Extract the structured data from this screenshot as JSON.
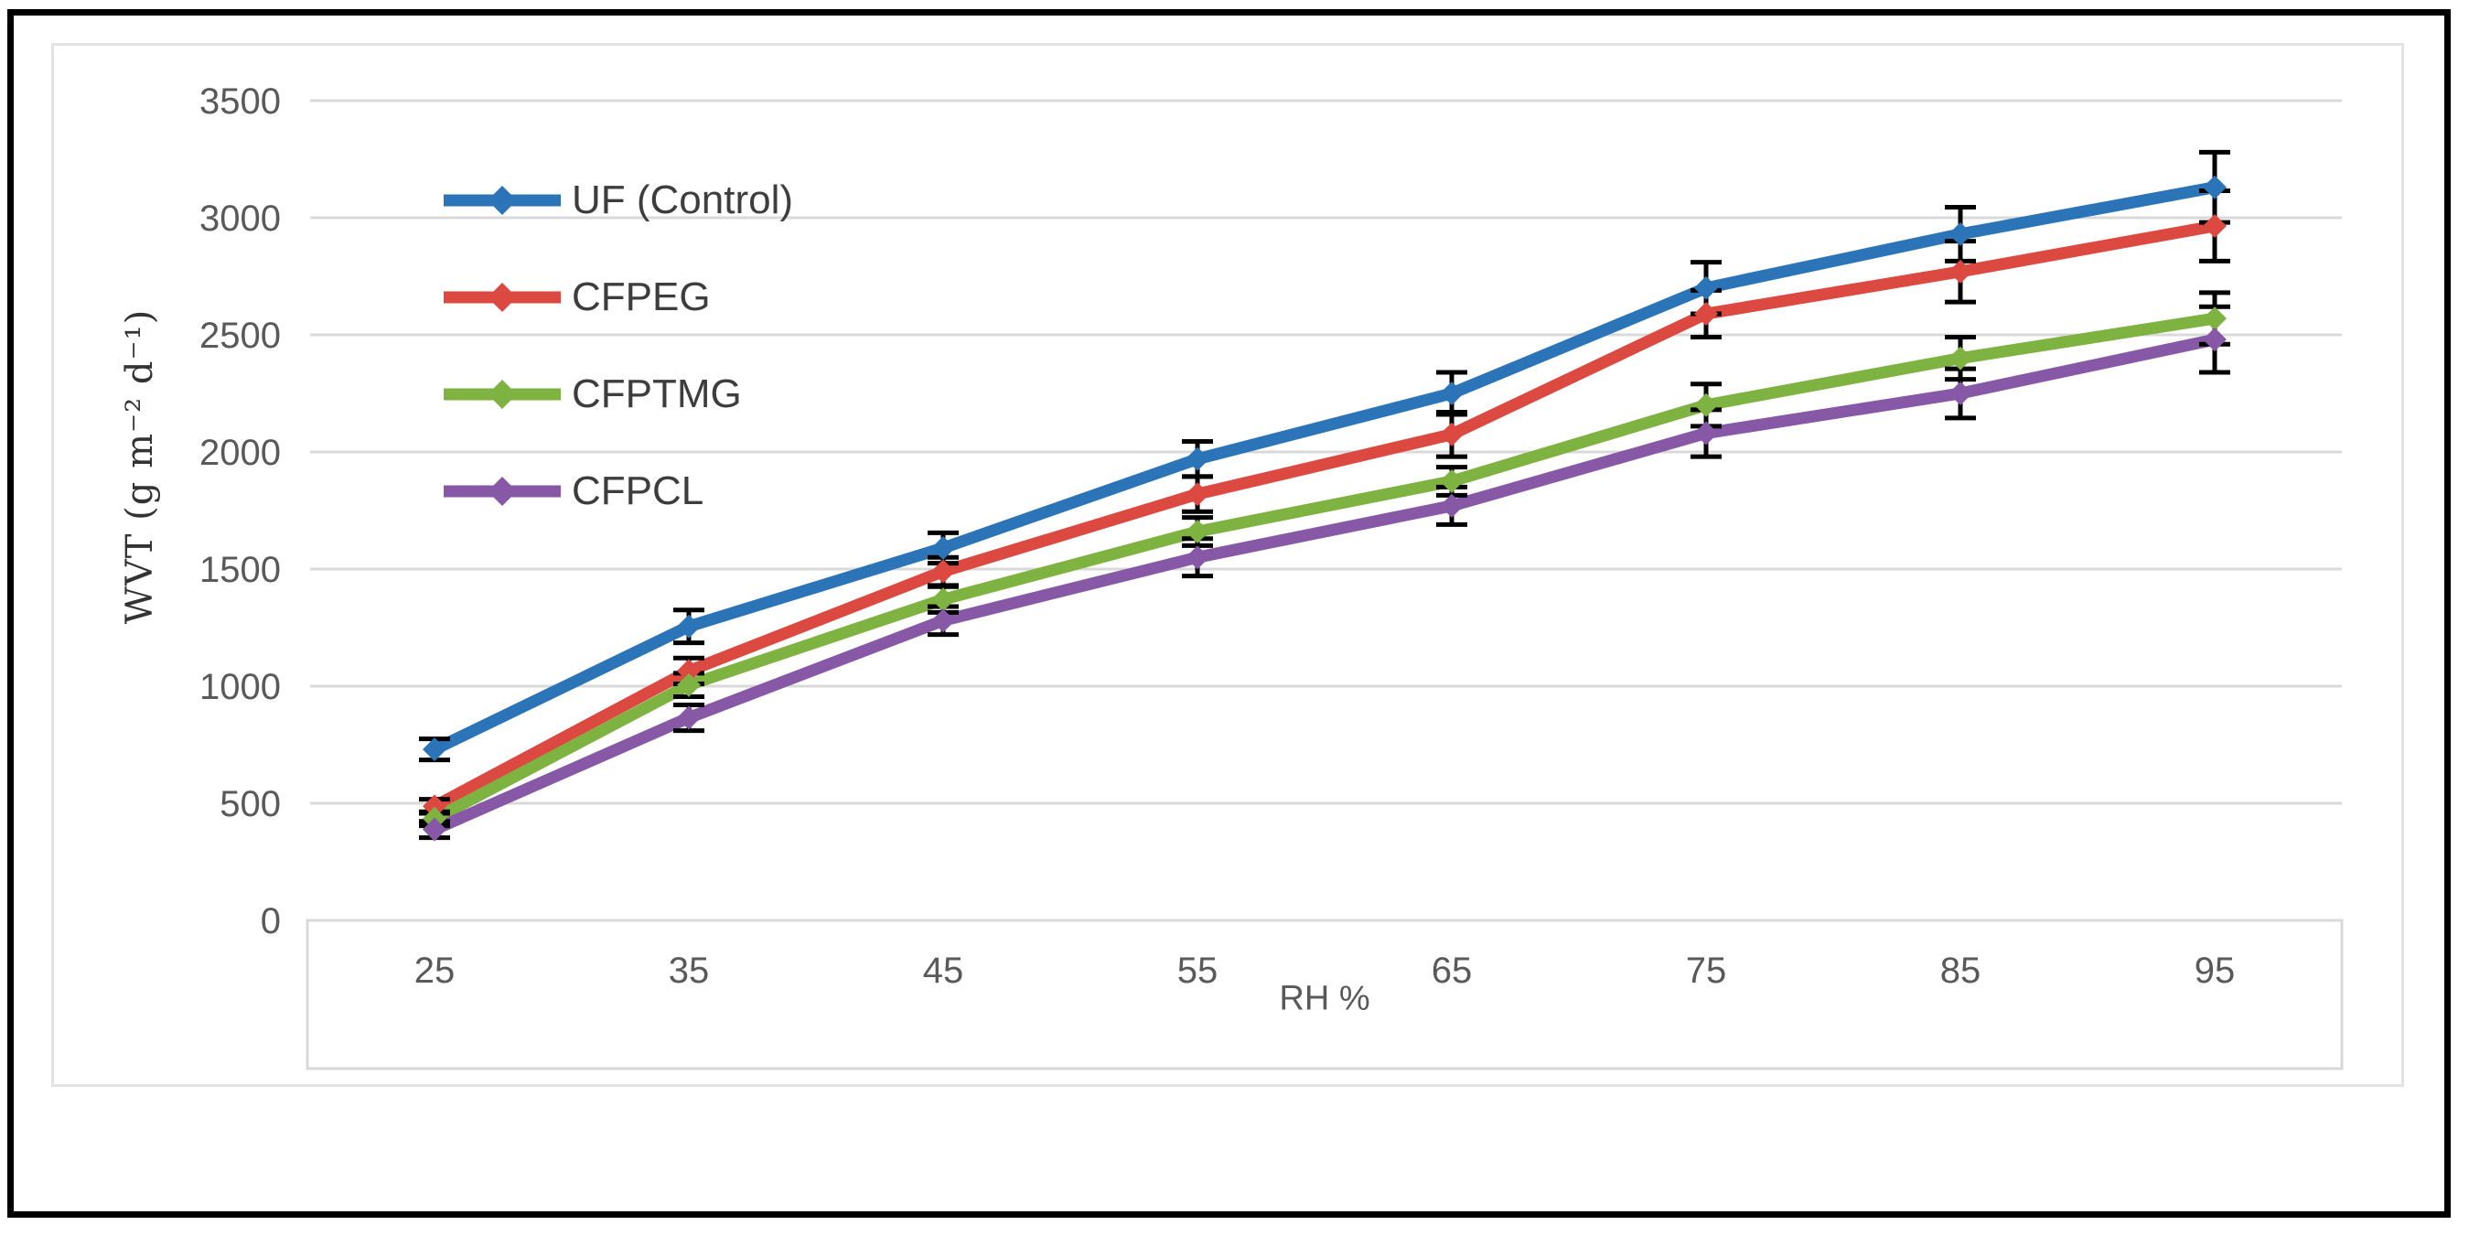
{
  "figure": {
    "background": "#ffffff",
    "outer_border_color": "#000000",
    "chart_border_color": "#e3e3e3"
  },
  "chart_data": {
    "type": "line",
    "title": "",
    "xlabel": "RH %",
    "ylabel": "WVT (g m⁻² d⁻¹)",
    "x": [
      25,
      35,
      45,
      55,
      65,
      75,
      85,
      95
    ],
    "xtick_labels": [
      "25",
      "35",
      "45",
      "55",
      "65",
      "75",
      "85",
      "95"
    ],
    "ylim": [
      0,
      3500
    ],
    "ytick_step": 500,
    "ytick_labels": [
      "0",
      "500",
      "1000",
      "1500",
      "2000",
      "2500",
      "3000",
      "3500"
    ],
    "grid": true,
    "gridline_color": "#d9d9d9",
    "tick_label_color": "#595959",
    "error_bar_color": "#000000",
    "marker": "diamond",
    "legend_position": "inside-top-left",
    "series": [
      {
        "name": "UF (Control)",
        "color": "#2b74b8",
        "values": [
          730,
          1255,
          1590,
          1970,
          2250,
          2700,
          2930,
          3130
        ],
        "errors": [
          45,
          70,
          65,
          75,
          90,
          110,
          115,
          150
        ]
      },
      {
        "name": "CFPEG",
        "color": "#db4941",
        "values": [
          487,
          1065,
          1490,
          1820,
          2075,
          2590,
          2770,
          2965
        ],
        "errors": [
          30,
          55,
          60,
          75,
          95,
          100,
          130,
          150
        ]
      },
      {
        "name": "CFPTMG",
        "color": "#7eb342",
        "values": [
          434,
          1005,
          1370,
          1660,
          1875,
          2200,
          2400,
          2570
        ],
        "errors": [
          30,
          50,
          55,
          60,
          60,
          90,
          90,
          110
        ]
      },
      {
        "name": "CFPCL",
        "color": "#8658a6",
        "values": [
          388,
          865,
          1280,
          1550,
          1770,
          2080,
          2250,
          2480
        ],
        "errors": [
          35,
          55,
          60,
          80,
          80,
          100,
          105,
          140
        ]
      }
    ]
  }
}
